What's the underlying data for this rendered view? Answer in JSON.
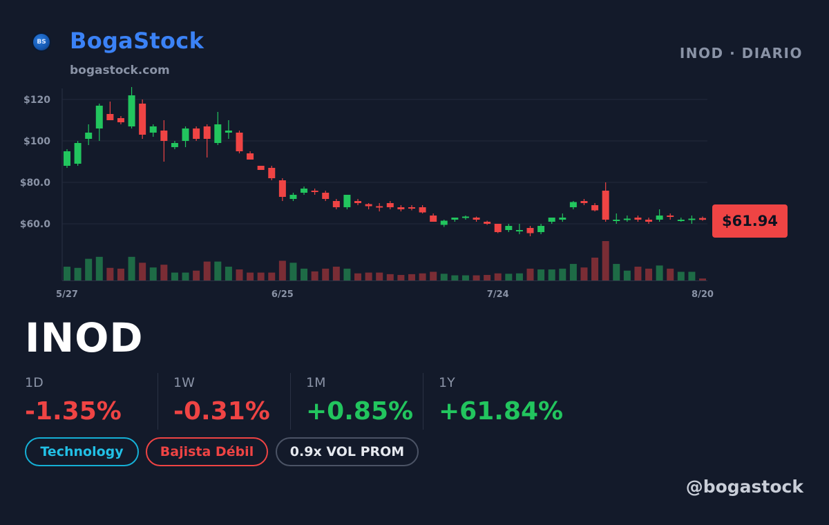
{
  "brand": {
    "name": "BogaStock",
    "url": "bogastock.com",
    "logo_text": "BS",
    "handle": "@bogastock"
  },
  "header": {
    "ticker_interval": "INOD · DIARIO"
  },
  "ticker": "INOD",
  "price_badge": "$61.94",
  "stats": [
    {
      "label": "1D",
      "value": "-1.35%",
      "direction": "neg"
    },
    {
      "label": "1W",
      "value": "-0.31%",
      "direction": "neg"
    },
    {
      "label": "1M",
      "value": "+0.85%",
      "direction": "pos"
    },
    {
      "label": "1Y",
      "value": "+61.84%",
      "direction": "pos"
    }
  ],
  "tags": {
    "sector": "Technology",
    "trend": "Bajista Débil",
    "volume": "0.9x VOL PROM"
  },
  "colors": {
    "up": "#22c55e",
    "down": "#ef4444",
    "up_volume": "#1e6b46",
    "down_volume": "#7a2d35",
    "brand": "#3b82f6",
    "background": "#131a2a"
  },
  "chart_data": {
    "type": "candlestick",
    "y_ticks": [
      {
        "value": 120,
        "label": "$120"
      },
      {
        "value": 100,
        "label": "$100"
      },
      {
        "value": 80,
        "label": "$80.0"
      },
      {
        "value": 60,
        "label": "$60.0"
      }
    ],
    "x_ticks": [
      {
        "index": 0,
        "label": "5/27"
      },
      {
        "index": 20,
        "label": "6/25"
      },
      {
        "index": 40,
        "label": "7/24"
      },
      {
        "index": 59,
        "label": "8/20"
      }
    ],
    "ylim": [
      35,
      130
    ],
    "last_price": 61.94,
    "ohlc": [
      [
        88,
        96,
        87,
        95
      ],
      [
        89,
        100,
        88,
        99
      ],
      [
        101,
        108,
        98,
        104
      ],
      [
        106,
        118,
        100,
        117
      ],
      [
        113,
        119,
        110,
        110
      ],
      [
        111,
        112,
        108,
        109
      ],
      [
        107,
        126,
        106,
        122
      ],
      [
        118,
        120,
        101,
        103
      ],
      [
        104,
        108,
        102,
        107
      ],
      [
        105,
        110,
        90,
        100
      ],
      [
        97,
        100,
        96,
        99
      ],
      [
        100,
        107,
        97,
        106
      ],
      [
        106,
        107,
        100,
        101
      ],
      [
        107,
        108,
        92,
        101
      ],
      [
        99,
        114,
        98,
        108
      ],
      [
        104,
        110,
        101,
        105
      ],
      [
        104,
        105,
        94,
        95
      ],
      [
        94,
        95,
        91,
        91
      ],
      [
        88,
        88,
        86,
        86
      ],
      [
        87,
        88,
        81,
        82
      ],
      [
        81,
        82,
        71,
        73
      ],
      [
        72,
        75,
        71,
        74
      ],
      [
        75,
        78,
        74,
        77
      ],
      [
        76,
        77,
        74,
        75.5
      ],
      [
        75,
        76,
        71,
        72
      ],
      [
        71,
        72,
        67,
        68
      ],
      [
        68,
        74,
        67,
        74
      ],
      [
        71,
        72,
        69,
        70
      ],
      [
        69.5,
        70,
        67,
        68.5
      ],
      [
        68.5,
        70,
        66,
        68
      ],
      [
        70,
        71,
        67,
        68
      ],
      [
        68,
        69,
        66,
        67
      ],
      [
        68,
        69,
        66.5,
        67.5
      ],
      [
        68,
        69,
        65,
        65.5
      ],
      [
        64,
        65,
        61,
        61
      ],
      [
        59.5,
        62,
        58.5,
        61.5
      ],
      [
        62,
        63,
        61,
        63
      ],
      [
        63,
        64,
        62,
        63.5
      ],
      [
        63,
        63.5,
        61,
        62
      ],
      [
        61,
        61.5,
        59.5,
        60
      ],
      [
        60,
        60,
        55.5,
        56
      ],
      [
        57,
        60,
        56,
        59
      ],
      [
        57,
        60,
        55,
        57
      ],
      [
        58,
        59,
        54,
        55.5
      ],
      [
        56,
        60,
        55,
        59
      ],
      [
        61,
        63,
        60,
        63
      ],
      [
        62,
        65,
        61,
        63
      ],
      [
        68,
        71,
        67,
        70.5
      ],
      [
        71,
        72,
        69,
        70
      ],
      [
        69,
        70,
        66,
        66.5
      ],
      [
        76,
        80,
        61,
        62
      ],
      [
        62,
        65,
        60,
        62
      ],
      [
        62,
        64,
        61,
        62.5
      ],
      [
        63,
        64,
        61,
        62
      ],
      [
        62,
        63,
        60,
        61
      ],
      [
        62,
        67,
        61,
        64
      ],
      [
        64,
        65,
        62,
        63.5
      ],
      [
        62,
        63,
        61,
        62
      ],
      [
        62,
        64,
        60,
        62.5
      ],
      [
        62.8,
        63.5,
        61.5,
        61.94
      ]
    ],
    "volume_relative": [
      0.35,
      0.32,
      0.55,
      0.6,
      0.32,
      0.3,
      0.6,
      0.45,
      0.33,
      0.4,
      0.2,
      0.2,
      0.25,
      0.48,
      0.48,
      0.35,
      0.28,
      0.2,
      0.2,
      0.2,
      0.5,
      0.45,
      0.3,
      0.23,
      0.3,
      0.35,
      0.3,
      0.18,
      0.2,
      0.2,
      0.16,
      0.14,
      0.16,
      0.18,
      0.22,
      0.17,
      0.13,
      0.13,
      0.13,
      0.14,
      0.18,
      0.17,
      0.18,
      0.3,
      0.28,
      0.28,
      0.3,
      0.42,
      0.33,
      0.58,
      1.0,
      0.42,
      0.25,
      0.35,
      0.3,
      0.38,
      0.3,
      0.22,
      0.22,
      0.05
    ]
  }
}
